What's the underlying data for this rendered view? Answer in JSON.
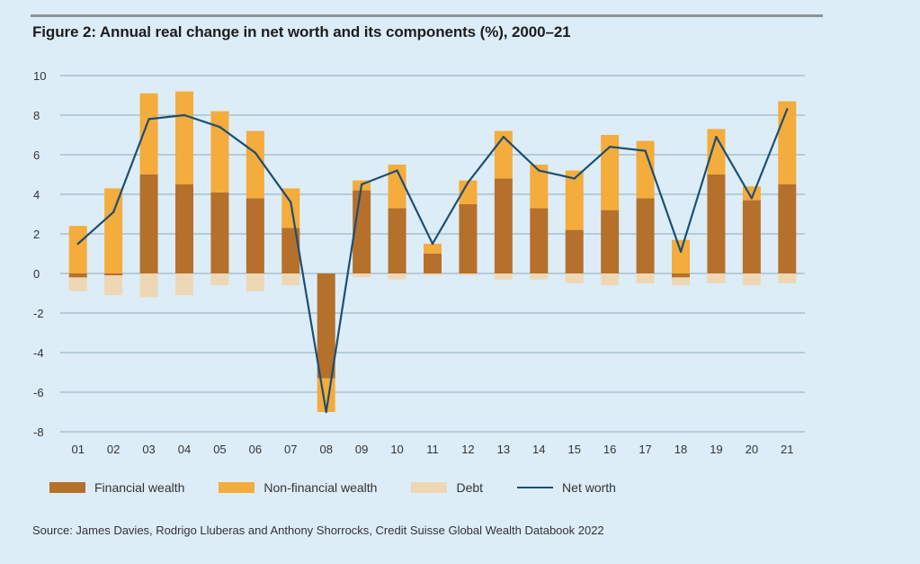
{
  "title": "Figure 2: Annual real change in net worth and its components (%), 2000–21",
  "source": "Source: James Davies, Rodrigo Lluberas and Anthony Shorrocks, Credit Suisse Global Wealth Databook 2022",
  "colors": {
    "financial": "#b5702b",
    "nonfinancial": "#f4ac3c",
    "debt": "#eed7b5",
    "networth": "#1e4e72",
    "grid": "#8fa9b8",
    "background": "#dcedf7"
  },
  "chart_data": {
    "type": "bar",
    "title": "Figure 2: Annual real change in net worth and its components (%), 2000–21",
    "xlabel": "",
    "ylabel": "",
    "ylim": [
      -8,
      10
    ],
    "yticks": [
      "10",
      "8",
      "6",
      "4",
      "2",
      "0",
      "-2",
      "-4",
      "-6",
      "-8"
    ],
    "categories": [
      "01",
      "02",
      "03",
      "04",
      "05",
      "06",
      "07",
      "08",
      "09",
      "10",
      "11",
      "12",
      "13",
      "14",
      "15",
      "16",
      "17",
      "18",
      "19",
      "20",
      "21"
    ],
    "stacked": true,
    "series": [
      {
        "name": "Financial wealth",
        "kind": "bar",
        "values": [
          -0.2,
          -0.1,
          5.0,
          4.5,
          4.1,
          3.8,
          2.3,
          -5.3,
          4.2,
          3.3,
          1.0,
          3.5,
          4.8,
          3.3,
          2.2,
          3.2,
          3.8,
          -0.2,
          5.0,
          3.7,
          4.5
        ]
      },
      {
        "name": "Non-financial wealth",
        "kind": "bar",
        "values": [
          2.4,
          4.3,
          4.1,
          4.7,
          4.1,
          3.4,
          2.0,
          -1.7,
          0.5,
          2.2,
          0.5,
          1.2,
          2.4,
          2.2,
          3.0,
          3.8,
          2.9,
          1.7,
          2.3,
          0.7,
          4.2
        ]
      },
      {
        "name": "Debt",
        "kind": "bar",
        "values": [
          -0.7,
          -1.0,
          -1.2,
          -1.1,
          -0.6,
          -0.9,
          -0.6,
          0.0,
          -0.2,
          -0.3,
          -0.1,
          -0.1,
          -0.3,
          -0.3,
          -0.5,
          -0.6,
          -0.5,
          -0.4,
          -0.5,
          -0.6,
          -0.5
        ]
      },
      {
        "name": "Net worth",
        "kind": "line",
        "values": [
          1.5,
          3.1,
          7.8,
          8.0,
          7.4,
          6.1,
          3.6,
          -7.0,
          4.5,
          5.2,
          1.5,
          4.6,
          6.9,
          5.2,
          4.8,
          6.4,
          6.2,
          1.1,
          6.9,
          3.8,
          8.3
        ]
      }
    ],
    "legend": [
      {
        "name": "Financial wealth",
        "kind": "bar",
        "color": "#b5702b"
      },
      {
        "name": "Non-financial wealth",
        "kind": "bar",
        "color": "#f4ac3c"
      },
      {
        "name": "Debt",
        "kind": "bar",
        "color": "#eed7b5"
      },
      {
        "name": "Net worth",
        "kind": "line",
        "color": "#1e4e72"
      }
    ],
    "legend_position": "bottom",
    "grid": true
  }
}
